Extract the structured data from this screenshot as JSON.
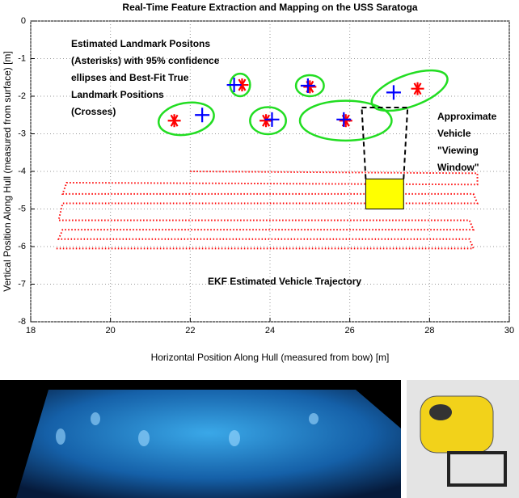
{
  "chart_data": {
    "type": "scatter",
    "title": "Real-Time Feature Extraction and Mapping on the USS Saratoga",
    "xlabel": "Horizontal Position Along Hull (measured from bow) [m]",
    "ylabel": "Vertical Position Along Hull (measured from surface) [m]",
    "xlim": [
      18,
      30
    ],
    "ylim": [
      -8,
      0
    ],
    "xticks": [
      18,
      20,
      22,
      24,
      26,
      28,
      30
    ],
    "yticks": [
      -8,
      -7,
      -6,
      -5,
      -4,
      -3,
      -2,
      -1,
      0
    ],
    "grid": true,
    "series": [
      {
        "marker": "asterisk",
        "color": "#ff0000",
        "x": [
          21.6,
          23.3,
          23.9,
          25.0,
          25.9,
          27.7
        ],
        "y": [
          -2.65,
          -1.7,
          -2.65,
          -1.75,
          -2.65,
          -1.8
        ]
      },
      {
        "marker": "cross",
        "color": "#0000ff",
        "x": [
          22.3,
          23.1,
          24.05,
          24.95,
          25.85,
          27.1
        ],
        "y": [
          -2.5,
          -1.7,
          -2.62,
          -1.72,
          -2.62,
          -1.9
        ]
      },
      {
        "marker": "dotted-line",
        "color": "#ff0000",
        "x": [
          22.0,
          29.2,
          29.2,
          18.9,
          18.8,
          29.1,
          29.2,
          18.8,
          18.7,
          29.0,
          29.1,
          18.8,
          18.7,
          29.0,
          29.1,
          18.6
        ],
        "y": [
          -4.0,
          -4.05,
          -4.35,
          -4.3,
          -4.6,
          -4.6,
          -4.85,
          -4.85,
          -5.3,
          -5.3,
          -5.55,
          -5.55,
          -5.8,
          -5.8,
          -6.05,
          -6.05
        ]
      }
    ],
    "ellipses": {
      "color": "#22dd22",
      "cx": [
        21.9,
        23.25,
        23.95,
        25.0,
        25.9,
        27.5
      ],
      "cy": [
        -2.6,
        -1.7,
        -2.65,
        -1.72,
        -2.65,
        -1.85
      ],
      "rx": [
        0.7,
        0.25,
        0.45,
        0.35,
        1.15,
        1.0
      ],
      "ry": [
        0.42,
        0.3,
        0.36,
        0.28,
        0.53,
        0.42
      ],
      "angle": [
        10,
        0,
        0,
        0,
        0,
        20
      ]
    },
    "vehicle": {
      "color": "#ffff00",
      "x": [
        26.4,
        27.35
      ],
      "y": [
        -5.0,
        -4.2
      ],
      "window_x": [
        26.3,
        27.45
      ],
      "window_y": -2.3
    },
    "annotations": {
      "landmarks": [
        "Estimated Landmark Positons",
        "(Asterisks) with 95% confidence",
        "ellipses and Best-Fit True",
        "Landmark Positions",
        "(Crosses)"
      ],
      "window": [
        "Approximate",
        "Vehicle",
        "\"Viewing",
        "Window\""
      ],
      "trajectory": "EKF Estimated Vehicle Trajectory"
    }
  }
}
